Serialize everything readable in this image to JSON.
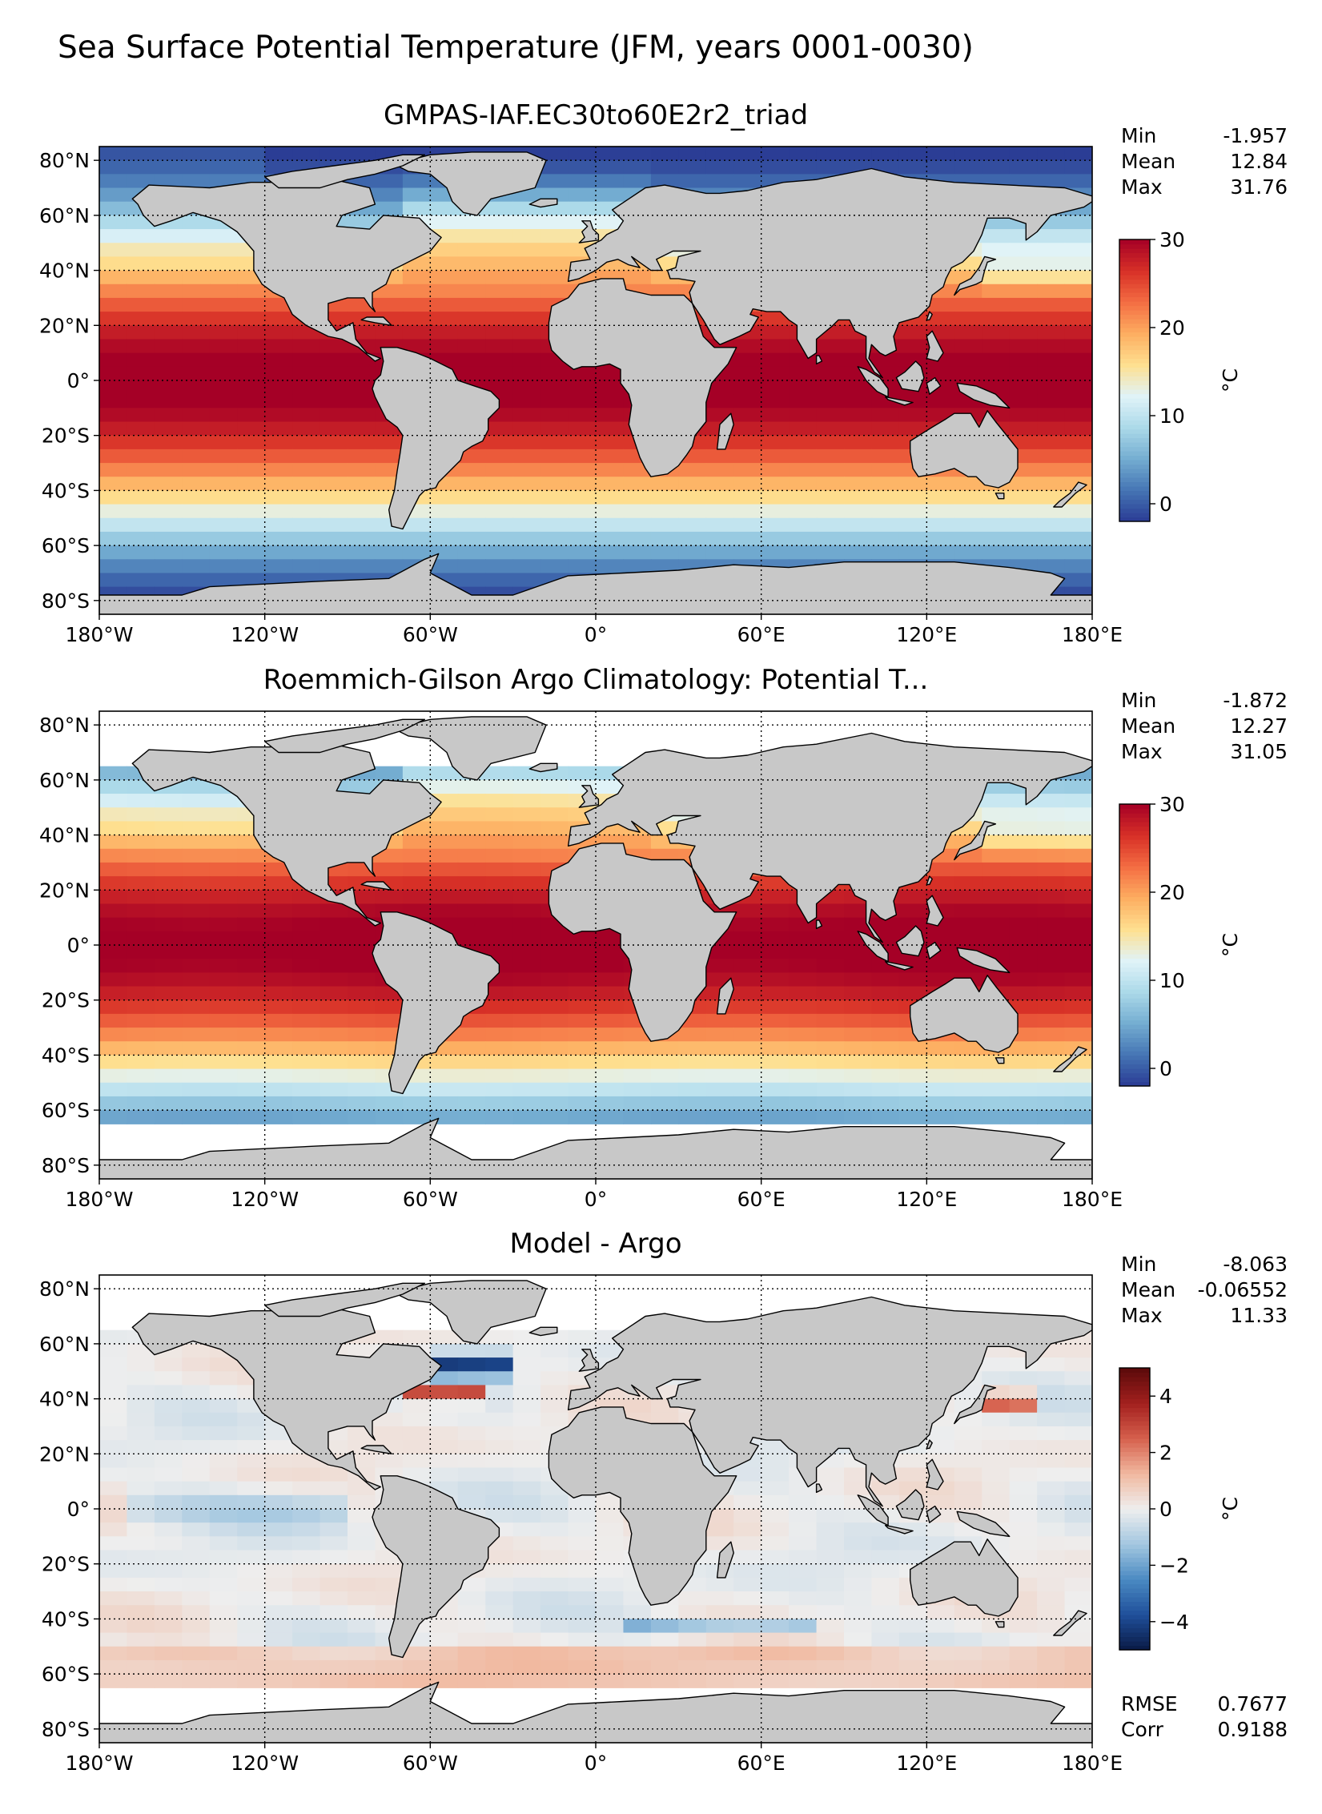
{
  "figure": {
    "title": "Sea Surface Potential Temperature (JFM, years 0001-0030)"
  },
  "x_ticks": [
    "180°W",
    "120°W",
    "60°W",
    "0°",
    "60°E",
    "120°E",
    "180°E"
  ],
  "y_ticks": [
    "80°N",
    "60°N",
    "40°N",
    "20°N",
    "0°",
    "20°S",
    "40°S",
    "60°S",
    "80°S"
  ],
  "colors": {
    "land": "#c8c8c8",
    "nodata": "#ffffff",
    "coast": "#000000"
  },
  "chart_data": [
    {
      "type": "heatmap",
      "title": "GMPAS-IAF.EC30to60E2r2_triad",
      "xlim": [
        -180,
        180
      ],
      "ylim": [
        -85,
        85
      ],
      "grid": true,
      "stats": [
        {
          "label": "Min",
          "value": "-1.957"
        },
        {
          "label": "Mean",
          "value": "12.84"
        },
        {
          "label": "Max",
          "value": "31.76"
        }
      ],
      "colorbar": {
        "label": "°C",
        "vmin": -2,
        "vmax": 30,
        "ticks": [
          {
            "v": 0,
            "t": "0"
          },
          {
            "v": 10,
            "t": "10"
          },
          {
            "v": 20,
            "t": "20"
          },
          {
            "v": 30,
            "t": "30"
          }
        ],
        "colormap": [
          "#2a3b94",
          "#4575b4",
          "#74add1",
          "#abd9e9",
          "#e0f3f8",
          "#fee090",
          "#fdae61",
          "#f46d43",
          "#d73027",
          "#a50026"
        ]
      },
      "coverage": "full"
    },
    {
      "type": "heatmap",
      "title": "Roemmich-Gilson Argo Climatology: Potential T...",
      "xlim": [
        -180,
        180
      ],
      "ylim": [
        -85,
        85
      ],
      "grid": true,
      "stats": [
        {
          "label": "Min",
          "value": "-1.872"
        },
        {
          "label": "Mean",
          "value": "12.27"
        },
        {
          "label": "Max",
          "value": "31.05"
        }
      ],
      "colorbar": {
        "label": "°C",
        "vmin": -2,
        "vmax": 30,
        "ticks": [
          {
            "v": 0,
            "t": "0"
          },
          {
            "v": 10,
            "t": "10"
          },
          {
            "v": 20,
            "t": "20"
          },
          {
            "v": 30,
            "t": "30"
          }
        ],
        "colormap": [
          "#2a3b94",
          "#4575b4",
          "#74add1",
          "#abd9e9",
          "#e0f3f8",
          "#fee090",
          "#fdae61",
          "#f46d43",
          "#d73027",
          "#a50026"
        ]
      },
      "coverage": "argo",
      "data_lat_range": [
        -65,
        65
      ]
    },
    {
      "type": "heatmap",
      "title": "Model - Argo",
      "xlim": [
        -180,
        180
      ],
      "ylim": [
        -85,
        85
      ],
      "grid": true,
      "stats": [
        {
          "label": "Min",
          "value": "-8.063"
        },
        {
          "label": "Mean",
          "value": "-0.06552"
        },
        {
          "label": "Max",
          "value": "11.33"
        }
      ],
      "bottom_stats": [
        {
          "label": "RMSE",
          "value": "0.7677"
        },
        {
          "label": "Corr",
          "value": "0.9188"
        }
      ],
      "colorbar": {
        "label": "°C",
        "vmin": -5,
        "vmax": 5,
        "ticks": [
          {
            "v": -4,
            "t": "−4"
          },
          {
            "v": -2,
            "t": "−2"
          },
          {
            "v": 0,
            "t": "0"
          },
          {
            "v": 2,
            "t": "2"
          },
          {
            "v": 4,
            "t": "4"
          }
        ],
        "colormap": [
          "#0a1a45",
          "#1f4f9a",
          "#4a8ac2",
          "#a3c7e0",
          "#eeeeee",
          "#f1b9a0",
          "#d6604d",
          "#a3201e",
          "#5a0a0a"
        ]
      },
      "coverage": "argo",
      "data_lat_range": [
        -65,
        65
      ]
    }
  ]
}
